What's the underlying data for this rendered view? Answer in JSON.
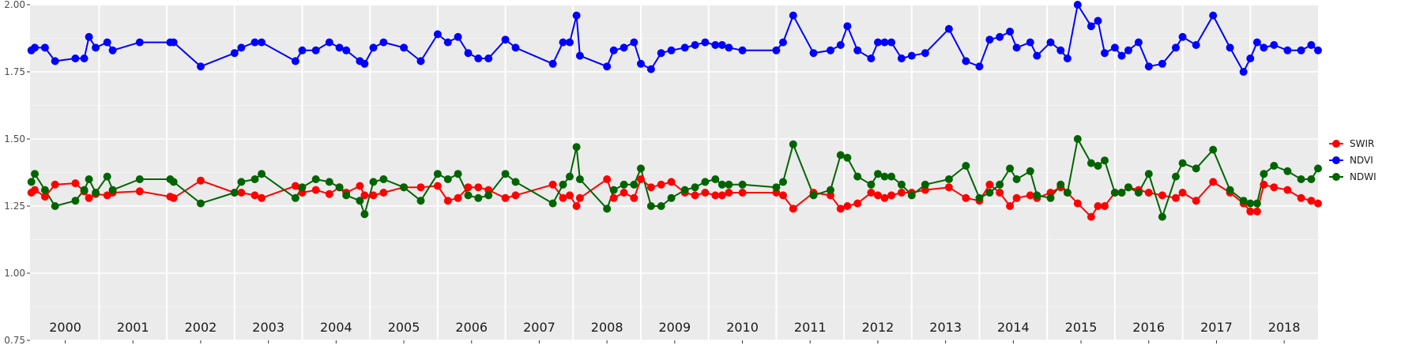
{
  "chart_data": {
    "type": "line",
    "title": "",
    "xlabel": "",
    "ylabel": "",
    "x_range": [
      1999.98,
      2019.0
    ],
    "ylim": [
      0.75,
      2.0
    ],
    "y_ticks": [
      "0.75",
      "1.00",
      "1.25",
      "1.50",
      "1.75",
      "2.00"
    ],
    "grid": true,
    "legend_position": "right",
    "year_labels": [
      "2000",
      "2001",
      "2002",
      "2003",
      "2004",
      "2005",
      "2006",
      "2007",
      "2008",
      "2009",
      "2010",
      "2011",
      "2012",
      "2013",
      "2014",
      "2015",
      "2016",
      "2017",
      "2018"
    ],
    "x": [
      2000.0,
      2000.05,
      2000.2,
      2000.35,
      2000.65,
      2000.78,
      2000.85,
      2000.95,
      2001.12,
      2001.2,
      2001.6,
      2002.05,
      2002.1,
      2002.5,
      2003.0,
      2003.1,
      2003.3,
      2003.4,
      2003.9,
      2004.0,
      2004.2,
      2004.4,
      2004.55,
      2004.65,
      2004.85,
      2004.92,
      2005.05,
      2005.2,
      2005.5,
      2005.75,
      2006.0,
      2006.15,
      2006.3,
      2006.45,
      2006.6,
      2006.75,
      2007.0,
      2007.15,
      2007.7,
      2007.85,
      2007.95,
      2008.05,
      2008.1,
      2008.5,
      2008.6,
      2008.75,
      2008.9,
      2009.0,
      2009.15,
      2009.3,
      2009.45,
      2009.65,
      2009.8,
      2009.95,
      2010.1,
      2010.2,
      2010.3,
      2010.5,
      2011.0,
      2011.1,
      2011.25,
      2011.55,
      2011.8,
      2011.95,
      2012.05,
      2012.2,
      2012.4,
      2012.5,
      2012.6,
      2012.7,
      2012.85,
      2013.0,
      2013.2,
      2013.55,
      2013.8,
      2014.0,
      2014.15,
      2014.3,
      2014.45,
      2014.55,
      2014.75,
      2014.85,
      2015.05,
      2015.2,
      2015.3,
      2015.45,
      2015.65,
      2015.75,
      2015.85,
      2016.0,
      2016.1,
      2016.2,
      2016.35,
      2016.5,
      2016.7,
      2016.9,
      2017.0,
      2017.2,
      2017.45,
      2017.7,
      2017.9,
      2018.0,
      2018.1,
      2018.2,
      2018.35,
      2018.55,
      2018.75,
      2018.9,
      2019.0
    ],
    "series": [
      {
        "name": "SWIR",
        "color": "#ff0000",
        "values": [
          1.3,
          1.31,
          1.285,
          1.33,
          1.335,
          1.305,
          1.28,
          1.295,
          1.29,
          1.3,
          1.305,
          1.285,
          1.28,
          1.345,
          1.3,
          1.3,
          1.29,
          1.28,
          1.325,
          1.3,
          1.31,
          1.295,
          1.32,
          1.3,
          1.325,
          1.29,
          1.29,
          1.3,
          1.32,
          1.32,
          1.325,
          1.27,
          1.28,
          1.32,
          1.32,
          1.31,
          1.28,
          1.29,
          1.33,
          1.28,
          1.29,
          1.25,
          1.28,
          1.35,
          1.28,
          1.3,
          1.28,
          1.35,
          1.32,
          1.33,
          1.34,
          1.3,
          1.29,
          1.3,
          1.29,
          1.29,
          1.3,
          1.3,
          1.3,
          1.29,
          1.24,
          1.3,
          1.29,
          1.24,
          1.25,
          1.26,
          1.3,
          1.29,
          1.28,
          1.29,
          1.3,
          1.3,
          1.31,
          1.32,
          1.28,
          1.27,
          1.33,
          1.3,
          1.25,
          1.28,
          1.29,
          1.28,
          1.3,
          1.32,
          1.3,
          1.26,
          1.21,
          1.25,
          1.25,
          1.3,
          1.3,
          1.32,
          1.31,
          1.3,
          1.29,
          1.28,
          1.3,
          1.27,
          1.34,
          1.3,
          1.26,
          1.23,
          1.23,
          1.33,
          1.32,
          1.31,
          1.28,
          1.27,
          1.26
        ]
      },
      {
        "name": "NDVI",
        "color": "#0000ff",
        "values": [
          1.83,
          1.84,
          1.84,
          1.79,
          1.8,
          1.8,
          1.88,
          1.84,
          1.86,
          1.83,
          1.86,
          1.86,
          1.86,
          1.77,
          1.82,
          1.84,
          1.86,
          1.86,
          1.79,
          1.83,
          1.83,
          1.86,
          1.84,
          1.83,
          1.79,
          1.78,
          1.84,
          1.86,
          1.84,
          1.79,
          1.89,
          1.86,
          1.88,
          1.82,
          1.8,
          1.8,
          1.87,
          1.84,
          1.78,
          1.86,
          1.86,
          1.96,
          1.81,
          1.77,
          1.83,
          1.84,
          1.86,
          1.78,
          1.76,
          1.82,
          1.83,
          1.84,
          1.85,
          1.86,
          1.85,
          1.85,
          1.84,
          1.83,
          1.83,
          1.86,
          1.96,
          1.82,
          1.83,
          1.85,
          1.92,
          1.83,
          1.8,
          1.86,
          1.86,
          1.86,
          1.8,
          1.81,
          1.82,
          1.91,
          1.79,
          1.77,
          1.87,
          1.88,
          1.9,
          1.84,
          1.86,
          1.81,
          1.86,
          1.83,
          1.8,
          2.0,
          1.92,
          1.94,
          1.82,
          1.84,
          1.81,
          1.83,
          1.86,
          1.77,
          1.78,
          1.84,
          1.88,
          1.85,
          1.96,
          1.84,
          1.75,
          1.8,
          1.86,
          1.84,
          1.85,
          1.83,
          1.83,
          1.85,
          1.83
        ]
      },
      {
        "name": "NDWI",
        "color": "#006400",
        "values": [
          1.34,
          1.37,
          1.31,
          1.25,
          1.27,
          1.31,
          1.35,
          1.3,
          1.36,
          1.31,
          1.35,
          1.35,
          1.34,
          1.26,
          1.3,
          1.34,
          1.35,
          1.37,
          1.28,
          1.32,
          1.35,
          1.34,
          1.32,
          1.29,
          1.27,
          1.22,
          1.34,
          1.35,
          1.32,
          1.27,
          1.37,
          1.35,
          1.37,
          1.29,
          1.28,
          1.29,
          1.37,
          1.34,
          1.26,
          1.33,
          1.36,
          1.47,
          1.35,
          1.24,
          1.31,
          1.33,
          1.33,
          1.39,
          1.25,
          1.25,
          1.28,
          1.31,
          1.32,
          1.34,
          1.35,
          1.33,
          1.33,
          1.33,
          1.32,
          1.34,
          1.48,
          1.29,
          1.31,
          1.44,
          1.43,
          1.36,
          1.33,
          1.37,
          1.36,
          1.36,
          1.33,
          1.29,
          1.33,
          1.35,
          1.4,
          1.28,
          1.3,
          1.33,
          1.39,
          1.35,
          1.38,
          1.29,
          1.28,
          1.33,
          1.3,
          1.5,
          1.41,
          1.4,
          1.42,
          1.3,
          1.3,
          1.32,
          1.3,
          1.37,
          1.21,
          1.36,
          1.41,
          1.39,
          1.46,
          1.31,
          1.27,
          1.26,
          1.26,
          1.37,
          1.4,
          1.38,
          1.35,
          1.35,
          1.39
        ]
      }
    ],
    "legend_order": [
      "SWIR",
      "NDVI",
      "NDWI"
    ]
  }
}
